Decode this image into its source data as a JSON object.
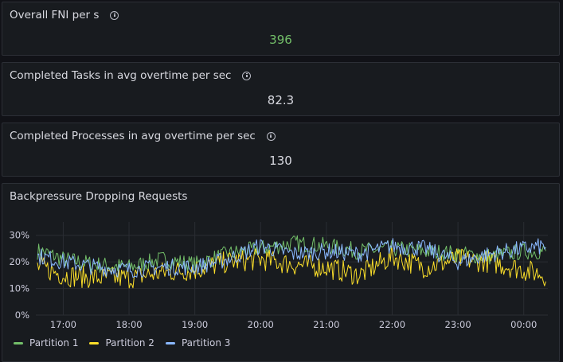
{
  "panels": [
    {
      "title": "Overall FNI per s",
      "value": "396",
      "value_color": "#73bf69"
    },
    {
      "title": "Completed Tasks in avg overtime per sec",
      "value": "82.3"
    },
    {
      "title": "Completed Processes in avg overtime per sec",
      "value": "130"
    }
  ],
  "timeseries": {
    "title": "Backpressure Dropping Requests",
    "legend": [
      {
        "name": "Partition 1",
        "color": "#73bf69"
      },
      {
        "name": "Partition 2",
        "color": "#fade2a"
      },
      {
        "name": "Partition 3",
        "color": "#8ab8ff"
      }
    ]
  },
  "chart_data": {
    "type": "line",
    "title": "Backpressure Dropping Requests",
    "ylim": [
      0,
      35
    ],
    "y_ticks": [
      "0%",
      "10%",
      "20%",
      "30%"
    ],
    "x_ticks": [
      "17:00",
      "18:00",
      "19:00",
      "20:00",
      "21:00",
      "22:00",
      "23:00",
      "00:00"
    ],
    "x_range": [
      "16:35",
      "00:22"
    ],
    "grid": true,
    "legend_position": "bottom-left",
    "series": [
      {
        "name": "Partition 1",
        "color": "#73bf69",
        "x": [
          "16:40",
          "17:00",
          "17:30",
          "18:00",
          "18:30",
          "19:00",
          "19:30",
          "20:00",
          "20:30",
          "21:00",
          "21:30",
          "22:00",
          "22:30",
          "23:00",
          "23:30",
          "00:00",
          "00:20"
        ],
        "values": [
          24,
          21,
          19,
          18,
          21,
          19,
          23,
          25,
          27,
          26,
          24,
          25,
          24,
          23,
          22,
          24,
          24
        ]
      },
      {
        "name": "Partition 2",
        "color": "#fade2a",
        "x": [
          "16:40",
          "17:00",
          "17:30",
          "18:00",
          "18:30",
          "19:00",
          "19:30",
          "20:00",
          "20:30",
          "21:00",
          "21:30",
          "22:00",
          "22:30",
          "23:00",
          "23:30",
          "00:00",
          "00:20"
        ],
        "values": [
          18,
          15,
          14,
          14,
          16,
          17,
          20,
          21,
          19,
          18,
          15,
          22,
          18,
          21,
          20,
          17,
          15
        ]
      },
      {
        "name": "Partition 3",
        "color": "#8ab8ff",
        "x": [
          "16:40",
          "17:00",
          "17:30",
          "18:00",
          "18:30",
          "19:00",
          "19:30",
          "20:00",
          "20:30",
          "21:00",
          "21:30",
          "22:00",
          "22:30",
          "23:00",
          "23:30",
          "00:00",
          "00:20"
        ],
        "values": [
          22,
          20,
          18,
          17,
          18,
          18,
          21,
          26,
          23,
          24,
          23,
          26,
          25,
          20,
          23,
          25,
          26
        ]
      }
    ]
  }
}
